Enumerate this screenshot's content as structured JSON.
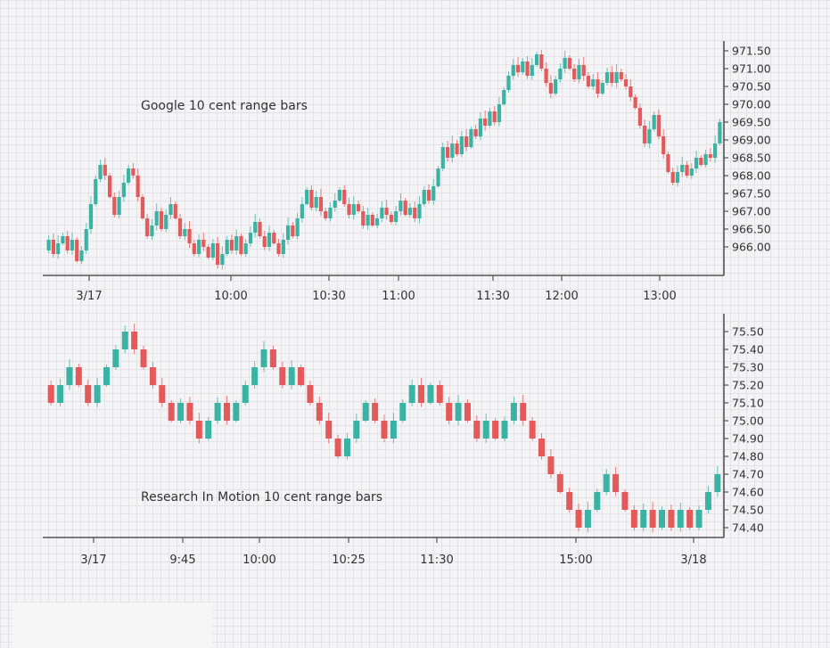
{
  "chart_data": [
    {
      "type": "range_bar",
      "title": "Google 10 cent range bars",
      "xlabel": "",
      "ylabel": "",
      "ylim": [
        965.5,
        971.8
      ],
      "y_ticks": [
        "966.00",
        "966.50",
        "967.00",
        "967.50",
        "968.00",
        "968.50",
        "969.00",
        "969.50",
        "970.00",
        "970.50",
        "971.00",
        "971.50"
      ],
      "x_ticks": [
        "3/17",
        "10:00",
        "10:30",
        "11:00",
        "11:30",
        "12:00",
        "13:00"
      ],
      "colors": {
        "up": "#3bb3a4",
        "down": "#e45a5a"
      },
      "series": [
        {
          "range": 0.1,
          "close_path": [
            965.9,
            966.2,
            965.8,
            966.1,
            966.3,
            965.9,
            966.2,
            965.6,
            965.9,
            966.5,
            967.2,
            967.9,
            968.3,
            968.0,
            967.4,
            966.9,
            967.4,
            967.8,
            968.2,
            968.0,
            967.4,
            966.8,
            966.3,
            966.6,
            967.0,
            966.5,
            966.9,
            967.2,
            966.8,
            966.3,
            966.5,
            966.1,
            965.8,
            966.2,
            966.0,
            965.7,
            966.1,
            965.5,
            965.8,
            966.2,
            965.9,
            966.3,
            965.8,
            966.1,
            966.4,
            966.7,
            966.3,
            966.0,
            966.4,
            966.1,
            965.8,
            966.2,
            966.6,
            966.3,
            966.8,
            967.2,
            967.6,
            967.1,
            967.4,
            967.0,
            966.8,
            967.1,
            967.3,
            967.6,
            967.2,
            966.9,
            967.2,
            967.0,
            966.6,
            966.9,
            966.6,
            966.8,
            967.1,
            966.9,
            966.7,
            967.0,
            967.3,
            966.9,
            967.1,
            966.8,
            967.2,
            967.6,
            967.3,
            967.7,
            968.2,
            968.8,
            968.5,
            968.9,
            968.6,
            969.1,
            968.8,
            969.3,
            969.1,
            969.6,
            969.4,
            969.8,
            969.5,
            970.0,
            970.4,
            970.8,
            971.1,
            970.9,
            971.2,
            970.8,
            971.1,
            971.4,
            971.0,
            970.6,
            970.3,
            970.7,
            971.0,
            971.3,
            971.0,
            970.7,
            971.1,
            970.8,
            970.5,
            970.7,
            970.3,
            970.6,
            970.9,
            970.6,
            970.9,
            970.7,
            970.5,
            970.2,
            969.9,
            969.4,
            968.9,
            969.3,
            969.7,
            969.1,
            968.6,
            968.1,
            967.8,
            968.1,
            968.3,
            968.0,
            968.2,
            968.5,
            968.3,
            968.6,
            968.5,
            968.9,
            969.5
          ]
        }
      ]
    },
    {
      "type": "range_bar",
      "title": "Research In Motion 10 cent range bars",
      "xlabel": "",
      "ylabel": "",
      "ylim": [
        74.35,
        75.6
      ],
      "y_ticks": [
        "74.40",
        "74.50",
        "74.60",
        "74.70",
        "74.80",
        "74.90",
        "75.00",
        "75.10",
        "75.20",
        "75.30",
        "75.40",
        "75.50"
      ],
      "x_ticks": [
        "3/17",
        "9:45",
        "10:00",
        "10:25",
        "11:30",
        "15:00",
        "3/18"
      ],
      "colors": {
        "up": "#3bb3a4",
        "down": "#e45a5a"
      },
      "series": [
        {
          "range": 0.1,
          "close_path": [
            75.2,
            75.1,
            75.2,
            75.3,
            75.2,
            75.1,
            75.2,
            75.3,
            75.4,
            75.5,
            75.4,
            75.3,
            75.2,
            75.1,
            75.0,
            75.1,
            75.0,
            74.9,
            75.0,
            75.1,
            75.0,
            75.1,
            75.2,
            75.3,
            75.4,
            75.3,
            75.2,
            75.3,
            75.2,
            75.1,
            75.0,
            74.9,
            74.8,
            74.9,
            75.0,
            75.1,
            75.0,
            74.9,
            75.0,
            75.1,
            75.2,
            75.1,
            75.2,
            75.1,
            75.0,
            75.1,
            75.0,
            74.9,
            75.0,
            74.9,
            75.0,
            75.1,
            75.0,
            74.9,
            74.8,
            74.7,
            74.6,
            74.5,
            74.4,
            74.5,
            74.6,
            74.7,
            74.6,
            74.5,
            74.4,
            74.5,
            74.4,
            74.5,
            74.4,
            74.5,
            74.4,
            74.5,
            74.6,
            74.7
          ]
        }
      ]
    }
  ]
}
